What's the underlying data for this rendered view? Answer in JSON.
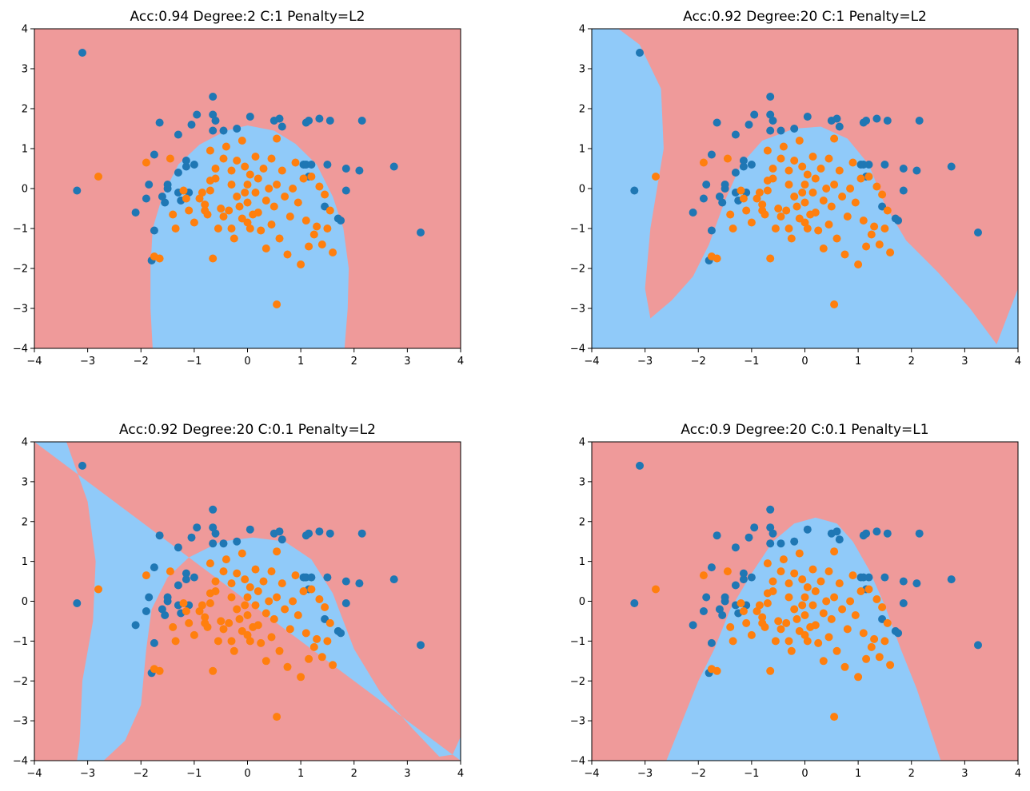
{
  "chart_data": [
    {
      "type": "scatter",
      "title": "Acc:0.94 Degree:2 C:1 Penalty=L2",
      "xlim": [
        -4,
        4
      ],
      "ylim": [
        -4,
        4
      ],
      "xticks": [
        -4,
        -3,
        -2,
        -1,
        0,
        1,
        2,
        3,
        4
      ],
      "yticks": [
        -4,
        -3,
        -2,
        -1,
        0,
        1,
        2,
        3,
        4
      ],
      "xticklabels": [
        "−4",
        "−3",
        "−2",
        "−1",
        "0",
        "1",
        "2",
        "3",
        "4"
      ],
      "yticklabels": [
        "−4",
        "−3",
        "−2",
        "−1",
        "0",
        "1",
        "2",
        "3",
        "4"
      ],
      "region_colors": {
        "class_0": "#ef9a9a",
        "class_1": "#90caf9"
      },
      "boundary_polygon": [
        [
          -1.78,
          -4.0
        ],
        [
          -1.82,
          -3.0
        ],
        [
          -1.82,
          -2.0
        ],
        [
          -1.78,
          -1.0
        ],
        [
          -1.6,
          -0.2
        ],
        [
          -1.3,
          0.6
        ],
        [
          -0.9,
          1.1
        ],
        [
          -0.4,
          1.45
        ],
        [
          0.0,
          1.58
        ],
        [
          0.5,
          1.45
        ],
        [
          0.9,
          1.12
        ],
        [
          1.3,
          0.6
        ],
        [
          1.6,
          -0.2
        ],
        [
          1.8,
          -1.0
        ],
        [
          1.9,
          -2.0
        ],
        [
          1.88,
          -3.0
        ],
        [
          1.82,
          -4.0
        ]
      ],
      "legend": [],
      "series": [
        {
          "name": "class_0",
          "color": "#1f77b4",
          "points": [
            [
              -3.2,
              -0.05
            ],
            [
              -3.1,
              3.4
            ],
            [
              -2.1,
              -0.6
            ],
            [
              -1.9,
              -0.25
            ],
            [
              -1.85,
              0.1
            ],
            [
              -1.8,
              -1.8
            ],
            [
              -1.75,
              -1.05
            ],
            [
              -1.75,
              0.85
            ],
            [
              -1.65,
              1.65
            ],
            [
              -1.6,
              -0.2
            ],
            [
              -1.55,
              -0.35
            ],
            [
              -1.5,
              0.0
            ],
            [
              -1.5,
              0.1
            ],
            [
              -1.3,
              1.35
            ],
            [
              -1.3,
              0.4
            ],
            [
              -1.3,
              -0.1
            ],
            [
              -1.25,
              -0.3
            ],
            [
              -1.15,
              0.55
            ],
            [
              -1.15,
              0.7
            ],
            [
              -1.1,
              -0.1
            ],
            [
              -1.0,
              0.6
            ],
            [
              -1.05,
              1.6
            ],
            [
              -0.95,
              1.85
            ],
            [
              -0.65,
              1.45
            ],
            [
              -0.65,
              1.85
            ],
            [
              -0.65,
              2.3
            ],
            [
              -0.6,
              1.7
            ],
            [
              -0.45,
              1.45
            ],
            [
              -0.2,
              1.5
            ],
            [
              0.05,
              1.8
            ],
            [
              0.5,
              1.7
            ],
            [
              0.6,
              1.75
            ],
            [
              0.65,
              1.55
            ],
            [
              1.05,
              0.6
            ],
            [
              1.1,
              0.6
            ],
            [
              1.15,
              0.3
            ],
            [
              1.1,
              1.65
            ],
            [
              1.15,
              1.7
            ],
            [
              1.2,
              0.6
            ],
            [
              1.35,
              1.75
            ],
            [
              1.45,
              -0.45
            ],
            [
              1.55,
              1.7
            ],
            [
              1.5,
              0.6
            ],
            [
              1.7,
              -0.75
            ],
            [
              1.75,
              -0.8
            ],
            [
              1.85,
              0.5
            ],
            [
              1.85,
              -0.05
            ],
            [
              2.1,
              0.45
            ],
            [
              2.15,
              1.7
            ],
            [
              2.75,
              0.55
            ],
            [
              3.25,
              -1.1
            ]
          ]
        },
        {
          "name": "class_1",
          "color": "#ff7f0e",
          "points": [
            [
              -2.8,
              0.3
            ],
            [
              -1.9,
              0.65
            ],
            [
              -1.75,
              -1.7
            ],
            [
              -1.65,
              -1.75
            ],
            [
              -1.45,
              0.75
            ],
            [
              -1.4,
              -0.65
            ],
            [
              -1.35,
              -1.0
            ],
            [
              -1.2,
              -0.05
            ],
            [
              -1.15,
              -0.25
            ],
            [
              -1.1,
              -0.55
            ],
            [
              -1.0,
              -0.85
            ],
            [
              -0.9,
              -0.25
            ],
            [
              -0.85,
              -0.1
            ],
            [
              -0.8,
              -0.4
            ],
            [
              -0.8,
              -0.55
            ],
            [
              -0.75,
              -0.65
            ],
            [
              -0.7,
              0.2
            ],
            [
              -0.7,
              -0.05
            ],
            [
              -0.7,
              0.95
            ],
            [
              -0.65,
              -1.75
            ],
            [
              -0.6,
              0.5
            ],
            [
              -0.6,
              0.25
            ],
            [
              -0.55,
              -1.0
            ],
            [
              -0.5,
              -0.5
            ],
            [
              -0.45,
              -0.7
            ],
            [
              -0.45,
              0.75
            ],
            [
              -0.4,
              1.05
            ],
            [
              -0.35,
              -0.55
            ],
            [
              -0.3,
              0.45
            ],
            [
              -0.3,
              0.1
            ],
            [
              -0.3,
              -1.0
            ],
            [
              -0.25,
              -1.25
            ],
            [
              -0.2,
              -0.2
            ],
            [
              -0.2,
              0.7
            ],
            [
              -0.15,
              -0.45
            ],
            [
              -0.1,
              -0.75
            ],
            [
              -0.1,
              1.2
            ],
            [
              -0.05,
              0.55
            ],
            [
              -0.05,
              -0.1
            ],
            [
              0.0,
              0.1
            ],
            [
              0.0,
              -0.35
            ],
            [
              0.0,
              -0.85
            ],
            [
              0.05,
              0.35
            ],
            [
              0.05,
              -1.0
            ],
            [
              0.1,
              -0.65
            ],
            [
              0.15,
              0.8
            ],
            [
              0.15,
              -0.1
            ],
            [
              0.2,
              0.25
            ],
            [
              0.2,
              -0.6
            ],
            [
              0.25,
              -1.05
            ],
            [
              0.3,
              0.5
            ],
            [
              0.35,
              -0.3
            ],
            [
              0.35,
              -1.5
            ],
            [
              0.4,
              0.0
            ],
            [
              0.45,
              -0.9
            ],
            [
              0.45,
              0.75
            ],
            [
              0.5,
              -0.45
            ],
            [
              0.55,
              0.1
            ],
            [
              0.55,
              1.25
            ],
            [
              0.55,
              -2.9
            ],
            [
              0.6,
              -1.25
            ],
            [
              0.65,
              0.45
            ],
            [
              0.7,
              -0.2
            ],
            [
              0.75,
              -1.65
            ],
            [
              0.8,
              -0.7
            ],
            [
              0.85,
              0.0
            ],
            [
              0.9,
              0.65
            ],
            [
              0.95,
              -0.35
            ],
            [
              1.0,
              -1.9
            ],
            [
              1.05,
              0.25
            ],
            [
              1.1,
              -0.8
            ],
            [
              1.15,
              -1.45
            ],
            [
              1.2,
              0.3
            ],
            [
              1.25,
              -1.15
            ],
            [
              1.3,
              -0.95
            ],
            [
              1.35,
              0.05
            ],
            [
              1.4,
              -1.4
            ],
            [
              1.45,
              -0.15
            ],
            [
              1.5,
              -1.0
            ],
            [
              1.55,
              -0.55
            ],
            [
              1.6,
              -1.6
            ]
          ]
        }
      ]
    },
    {
      "type": "scatter",
      "title": "Acc:0.92 Degree:20 C:1 Penalty=L2",
      "xlim": [
        -4,
        4
      ],
      "ylim": [
        -4,
        4
      ],
      "xticks": [
        -4,
        -3,
        -2,
        -1,
        0,
        1,
        2,
        3,
        4
      ],
      "yticks": [
        -4,
        -3,
        -2,
        -1,
        0,
        1,
        2,
        3,
        4
      ],
      "xticklabels": [
        "−4",
        "−3",
        "−2",
        "−1",
        "0",
        "1",
        "2",
        "3",
        "4"
      ],
      "yticklabels": [
        "−4",
        "−3",
        "−2",
        "−1",
        "0",
        "1",
        "2",
        "3",
        "4"
      ],
      "region_colors": {
        "class_0": "#ef9a9a",
        "class_1": "#90caf9"
      },
      "boundary_polygon": [
        [
          -4.0,
          4.0
        ],
        [
          -3.5,
          4.0
        ],
        [
          -3.1,
          3.6
        ],
        [
          -2.7,
          2.5
        ],
        [
          -2.65,
          1.0
        ],
        [
          -2.9,
          -1.0
        ],
        [
          -3.0,
          -2.5
        ],
        [
          -2.9,
          -3.25
        ],
        [
          -2.5,
          -2.8
        ],
        [
          -2.1,
          -2.2
        ],
        [
          -1.8,
          -1.4
        ],
        [
          -1.5,
          -0.3
        ],
        [
          -1.2,
          0.6
        ],
        [
          -0.8,
          1.2
        ],
        [
          -0.2,
          1.5
        ],
        [
          0.3,
          1.55
        ],
        [
          0.8,
          1.25
        ],
        [
          1.2,
          0.6
        ],
        [
          1.5,
          -0.4
        ],
        [
          1.9,
          -1.3
        ],
        [
          2.5,
          -2.1
        ],
        [
          3.1,
          -3.0
        ],
        [
          3.6,
          -3.9
        ],
        [
          4.0,
          -2.5
        ],
        [
          4.0,
          -4.0
        ],
        [
          -4.0,
          -4.0
        ]
      ],
      "legend": [],
      "series": []
    },
    {
      "type": "scatter",
      "title": "Acc:0.92 Degree:20 C:0.1 Penalty=L2",
      "xlim": [
        -4,
        4
      ],
      "ylim": [
        -4,
        4
      ],
      "xticks": [
        -4,
        -3,
        -2,
        -1,
        0,
        1,
        2,
        3,
        4
      ],
      "yticks": [
        -4,
        -3,
        -2,
        -1,
        0,
        1,
        2,
        3,
        4
      ],
      "xticklabels": [
        "−4",
        "−3",
        "−2",
        "−1",
        "0",
        "1",
        "2",
        "3",
        "4"
      ],
      "yticklabels": [
        "−4",
        "−3",
        "−2",
        "−1",
        "0",
        "1",
        "2",
        "3",
        "4"
      ],
      "region_colors": {
        "class_0": "#ef9a9a",
        "class_1": "#90caf9"
      },
      "boundary_polygon": [
        [
          -4.0,
          4.0
        ],
        [
          -3.4,
          4.0
        ],
        [
          -3.0,
          2.5
        ],
        [
          -2.85,
          1.0
        ],
        [
          -2.9,
          -0.5
        ],
        [
          -3.1,
          -2.0
        ],
        [
          -3.15,
          -3.5
        ],
        [
          -3.2,
          -4.0
        ],
        [
          -4.0,
          -4.0
        ],
        [
          -2.7,
          -4.0
        ],
        [
          -2.3,
          -3.5
        ],
        [
          -2.0,
          -2.6
        ],
        [
          -1.9,
          -1.2
        ],
        [
          -1.8,
          -0.2
        ],
        [
          -1.5,
          0.6
        ],
        [
          -1.1,
          1.1
        ],
        [
          -0.5,
          1.5
        ],
        [
          0.1,
          1.6
        ],
        [
          0.7,
          1.5
        ],
        [
          1.2,
          1.05
        ],
        [
          1.6,
          0.2
        ],
        [
          2.0,
          -1.2
        ],
        [
          2.5,
          -2.3
        ],
        [
          3.1,
          -3.2
        ],
        [
          3.6,
          -3.9
        ],
        [
          3.85,
          -3.85
        ],
        [
          4.0,
          -3.4
        ],
        [
          4.0,
          -4.0
        ]
      ],
      "legend": [],
      "series": []
    },
    {
      "type": "scatter",
      "title": "Acc:0.9 Degree:20 C:0.1 Penalty=L1",
      "xlim": [
        -4,
        4
      ],
      "ylim": [
        -4,
        4
      ],
      "xticks": [
        -4,
        -3,
        -2,
        -1,
        0,
        1,
        2,
        3,
        4
      ],
      "yticks": [
        -4,
        -3,
        -2,
        -1,
        0,
        1,
        2,
        3,
        4
      ],
      "xticklabels": [
        "−4",
        "−3",
        "−2",
        "−1",
        "0",
        "1",
        "2",
        "3",
        "4"
      ],
      "yticklabels": [
        "−4",
        "−3",
        "−2",
        "−1",
        "0",
        "1",
        "2",
        "3",
        "4"
      ],
      "region_colors": {
        "class_0": "#ef9a9a",
        "class_1": "#90caf9"
      },
      "boundary_polygon": [
        [
          -2.6,
          -4.0
        ],
        [
          -2.3,
          -3.0
        ],
        [
          -2.0,
          -2.0
        ],
        [
          -1.7,
          -1.2
        ],
        [
          -1.4,
          -0.2
        ],
        [
          -1.0,
          0.7
        ],
        [
          -0.6,
          1.5
        ],
        [
          -0.2,
          1.95
        ],
        [
          0.2,
          2.1
        ],
        [
          0.6,
          1.95
        ],
        [
          0.9,
          1.5
        ],
        [
          1.2,
          0.8
        ],
        [
          1.5,
          -0.1
        ],
        [
          1.8,
          -1.2
        ],
        [
          2.1,
          -2.2
        ],
        [
          2.3,
          -3.0
        ],
        [
          2.55,
          -4.0
        ]
      ],
      "legend": [],
      "series": []
    }
  ]
}
